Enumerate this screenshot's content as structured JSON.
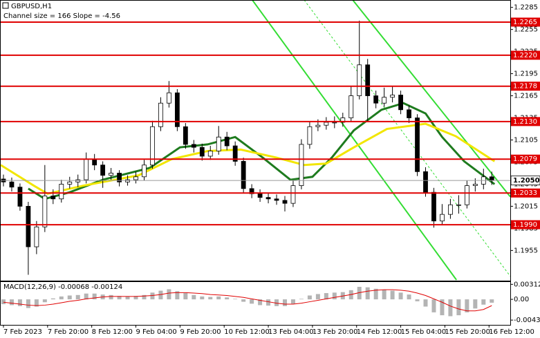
{
  "chart_data": [
    {
      "type": "candlestick",
      "title": "GBPUSD,H1",
      "subtitle": "Channel size = 166 Slope = -4.56",
      "x": [
        0,
        3,
        6,
        9,
        12,
        15,
        18,
        21,
        24,
        27,
        30,
        33,
        36,
        39,
        42,
        45,
        48,
        51,
        54,
        57,
        60,
        63,
        66,
        69,
        72,
        75,
        78,
        81,
        84,
        87,
        90,
        93,
        96,
        99,
        102,
        105,
        108,
        111,
        114,
        117,
        120,
        123,
        126,
        129,
        132,
        135,
        138,
        141,
        144,
        147,
        150,
        153,
        156,
        159,
        162,
        165,
        168,
        171,
        174,
        177
      ],
      "open": [
        1.2052,
        1.2048,
        1.2041,
        1.2015,
        1.196,
        1.1987,
        1.2029,
        1.2025,
        1.2045,
        1.2048,
        1.2051,
        1.2079,
        1.2071,
        1.2057,
        1.206,
        1.2048,
        1.2051,
        1.2055,
        1.2071,
        1.2123,
        1.2155,
        1.2169,
        1.2123,
        1.2099,
        1.2095,
        1.2083,
        1.209,
        1.2109,
        1.2097,
        1.2076,
        1.2039,
        1.2032,
        1.2027,
        1.2025,
        1.2023,
        1.2019,
        1.2043,
        1.2099,
        1.2123,
        1.2125,
        1.2129,
        1.2129,
        1.2135,
        1.2165,
        1.2207,
        1.2165,
        1.2155,
        1.2163,
        1.2166,
        1.2146,
        1.2135,
        1.2062,
        1.2034,
        1.1995,
        1.2004,
        1.2017,
        1.2017,
        1.2043,
        1.2045,
        1.2055
      ],
      "high": [
        1.2058,
        1.2054,
        1.2046,
        1.2021,
        1.1995,
        1.2071,
        1.2038,
        1.2051,
        1.2055,
        1.2058,
        1.2088,
        1.2086,
        1.2076,
        1.2067,
        1.2064,
        1.2057,
        1.2062,
        1.2078,
        1.2131,
        1.2163,
        1.2185,
        1.2174,
        1.2128,
        1.2105,
        1.21,
        1.2097,
        1.2124,
        1.2116,
        1.2103,
        1.2081,
        1.2045,
        1.2038,
        1.2033,
        1.2031,
        1.2029,
        1.205,
        1.2106,
        1.213,
        1.2133,
        1.2136,
        1.2137,
        1.2142,
        1.2178,
        1.2267,
        1.2215,
        1.2172,
        1.2176,
        1.2178,
        1.2172,
        1.2152,
        1.214,
        1.2068,
        1.204,
        1.2018,
        1.2025,
        1.203,
        1.205,
        1.2053,
        1.2066,
        1.2062
      ],
      "low": [
        1.2042,
        1.2035,
        1.2009,
        1.1922,
        1.195,
        1.198,
        1.2018,
        1.202,
        1.2039,
        1.2041,
        1.2046,
        1.2064,
        1.204,
        1.2051,
        1.2042,
        1.2043,
        1.2046,
        1.205,
        1.2066,
        1.2117,
        1.2149,
        1.2117,
        1.2093,
        1.2088,
        1.2077,
        1.2078,
        1.2085,
        1.2091,
        1.207,
        1.2033,
        1.2026,
        1.2021,
        1.2019,
        1.2017,
        1.2008,
        1.2014,
        1.2038,
        1.2093,
        1.2117,
        1.2119,
        1.2121,
        1.2123,
        1.213,
        1.216,
        1.213,
        1.2148,
        1.215,
        1.2156,
        1.214,
        1.2128,
        1.2056,
        1.2028,
        1.1986,
        1.199,
        1.1998,
        1.2005,
        1.2012,
        1.2035,
        1.2038,
        1.2044
      ],
      "close": [
        1.2048,
        1.2041,
        1.2015,
        1.196,
        1.1987,
        1.2029,
        1.2025,
        1.2045,
        1.2048,
        1.2051,
        1.2079,
        1.2071,
        1.2057,
        1.206,
        1.2048,
        1.2051,
        1.2055,
        1.2071,
        1.2123,
        1.2155,
        1.2169,
        1.2123,
        1.2099,
        1.2095,
        1.2083,
        1.209,
        1.2109,
        1.2097,
        1.2076,
        1.2039,
        1.2032,
        1.2027,
        1.2025,
        1.2023,
        1.2019,
        1.2043,
        1.2099,
        1.2123,
        1.2125,
        1.2129,
        1.2129,
        1.2135,
        1.2165,
        1.2207,
        1.2165,
        1.2155,
        1.2163,
        1.2166,
        1.2146,
        1.2135,
        1.2062,
        1.2034,
        1.1995,
        1.2004,
        1.2017,
        1.2017,
        1.2043,
        1.2045,
        1.2055,
        1.205
      ],
      "up_color": "#ffffff",
      "down_color": "#000000",
      "xlim": [
        -1.25,
        183.7
      ],
      "ylim": [
        1.1915,
        1.2295
      ],
      "xticks": [
        {
          "value": 0,
          "label": "7 Feb 2023"
        },
        {
          "value": 16,
          "label": "7 Feb 20:00"
        },
        {
          "value": 32,
          "label": "8 Feb 12:00"
        },
        {
          "value": 48,
          "label": "9 Feb 04:00"
        },
        {
          "value": 64,
          "label": "9 Feb 20:00"
        },
        {
          "value": 80,
          "label": "10 Feb 12:00"
        },
        {
          "value": 96,
          "label": "13 Feb 04:00"
        },
        {
          "value": 112,
          "label": "13 Feb 20:00"
        },
        {
          "value": 128,
          "label": "14 Feb 12:00"
        },
        {
          "value": 144,
          "label": "15 Feb 04:00"
        },
        {
          "value": 160,
          "label": "15 Feb 20:00"
        },
        {
          "value": 176,
          "label": "16 Feb 12:00"
        }
      ],
      "yticks": [
        1.2285,
        1.2255,
        1.2225,
        1.2195,
        1.2165,
        1.2135,
        1.2105,
        1.2075,
        1.2045,
        1.2015,
        1.1985,
        1.1955
      ],
      "series": [
        {
          "color": "#1e7b1e",
          "x": [
            9,
            15,
            24,
            36,
            53,
            64,
            74,
            84,
            94,
            104,
            112,
            119,
            127,
            137,
            145,
            153,
            159,
            167,
            178
          ],
          "values": [
            1.2039,
            1.2025,
            1.2034,
            1.2051,
            1.2067,
            1.2095,
            1.2099,
            1.2109,
            1.2081,
            1.2051,
            1.2055,
            1.2081,
            1.2118,
            1.2146,
            1.2155,
            1.2141,
            1.2109,
            1.2076,
            1.2045
          ]
        },
        {
          "color": "#f2e600",
          "x": [
            -1,
            11,
            16,
            29,
            49,
            61,
            74,
            86,
            99,
            109,
            117,
            127,
            139,
            153,
            164,
            178
          ],
          "values": [
            1.2071,
            1.2043,
            1.2032,
            1.2043,
            1.2057,
            1.2079,
            1.209,
            1.2092,
            1.2081,
            1.2071,
            1.2073,
            1.2095,
            1.212,
            1.2127,
            1.211,
            1.2076
          ]
        }
      ],
      "channel": [
        {
          "color": "#33dd33",
          "x": [
            126.6,
            183.7
          ],
          "values": [
            1.2295,
            1.2028
          ],
          "dashed": false
        },
        {
          "color": "#33dd33",
          "x": [
            90.2,
            164.2
          ],
          "values": [
            1.2295,
            1.1915
          ],
          "dashed": false
        },
        {
          "color": "#33dd33",
          "x": [
            109,
            183.7
          ],
          "values": [
            1.2295,
            1.192
          ],
          "dashed": true
        }
      ],
      "level_color": "#e00000",
      "levels": [
        1.2265,
        {
          "value": 1.222,
          "label": "1.2220"
        },
        1.2178,
        {
          "value": 1.213,
          "label": "1.2130"
        },
        1.2079,
        1.2033,
        {
          "value": 1.199,
          "label": "1.1990"
        }
      ],
      "current_price": {
        "value": 1.205,
        "label": "1.2050"
      }
    },
    {
      "type": "macd",
      "title": "MACD(12,26,9) -0.00068 -0.00124",
      "histogram": [
        -0.001,
        -0.0012,
        -0.0014,
        -0.0018,
        -0.0015,
        -0.0006,
        0.0002,
        0.0006,
        0.0008,
        0.0009,
        0.0012,
        0.0012,
        0.001,
        0.0009,
        0.0007,
        0.0006,
        0.0007,
        0.0009,
        0.0014,
        0.0018,
        0.0021,
        0.0017,
        0.0013,
        0.0009,
        0.0006,
        0.0005,
        0.0006,
        0.0004,
        0.0001,
        -0.0005,
        -0.0009,
        -0.0012,
        -0.0013,
        -0.0014,
        -0.0014,
        -0.0009,
        0.0001,
        0.0008,
        0.0011,
        0.0013,
        0.0014,
        0.0015,
        0.0019,
        0.0026,
        0.0025,
        0.0022,
        0.002,
        0.0018,
        0.0014,
        0.001,
        -0.0004,
        -0.0015,
        -0.0027,
        -0.0033,
        -0.0035,
        -0.0033,
        -0.0027,
        -0.0019,
        -0.0011,
        -0.0007
      ],
      "signal": [
        -0.0006,
        -0.0008,
        -0.001,
        -0.0012,
        -0.0013,
        -0.0012,
        -0.001,
        -0.0007,
        -0.0004,
        -0.0002,
        0.0001,
        0.0003,
        0.0005,
        0.0006,
        0.0006,
        0.0006,
        0.0006,
        0.0007,
        0.0008,
        0.001,
        0.0013,
        0.0014,
        0.0014,
        0.0013,
        0.0012,
        0.001,
        0.0009,
        0.0008,
        0.0006,
        0.0004,
        0.0001,
        -0.0002,
        -0.0005,
        -0.0008,
        -0.001,
        -0.001,
        -0.0008,
        -0.0005,
        -0.0002,
        0.0001,
        0.0004,
        0.0007,
        0.001,
        0.0014,
        0.0017,
        0.0019,
        0.002,
        0.002,
        0.0019,
        0.0017,
        0.0013,
        0.0008,
        0.0001,
        -0.0006,
        -0.0014,
        -0.002,
        -0.0024,
        -0.0024,
        -0.0021,
        -0.0013
      ],
      "histogram_color": "#b4b4b4",
      "signal_color": "#e00000",
      "ylim": [
        -0.0053,
        0.0036
      ],
      "yticks": [
        0.00312,
        {
          "value": 0,
          "label": "0.00"
        },
        -0.00431
      ]
    }
  ]
}
